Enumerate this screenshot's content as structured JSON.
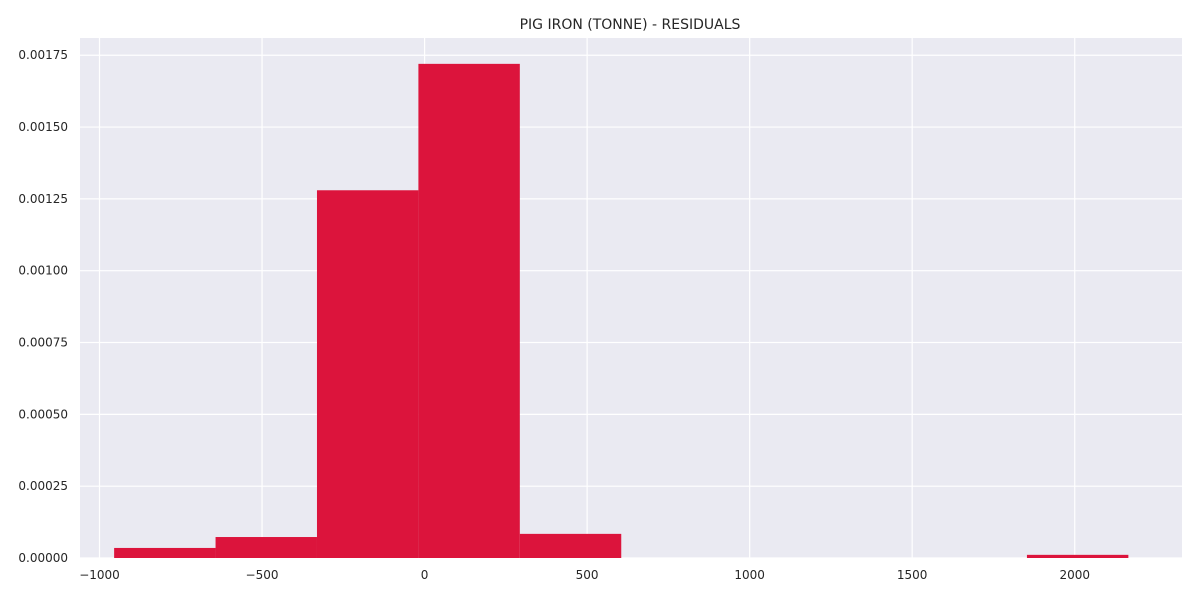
{
  "chart_data": {
    "type": "bar",
    "title": "PIG IRON (TONNE) - RESIDUALS",
    "xlabel": "",
    "ylabel": "",
    "xlim": [
      -1060,
      2330
    ],
    "ylim": [
      0,
      0.00181
    ],
    "grid": true,
    "background_color": "#eaeaf2",
    "bar_color": "#dc143c",
    "bins": [
      {
        "x0": -955,
        "x1": -643,
        "value": 3.5e-05
      },
      {
        "x0": -643,
        "x1": -331,
        "value": 7.3e-05
      },
      {
        "x0": -331,
        "x1": -19,
        "value": 0.00128
      },
      {
        "x0": -19,
        "x1": 293,
        "value": 0.00172
      },
      {
        "x0": 293,
        "x1": 605,
        "value": 8.4e-05
      },
      {
        "x0": 605,
        "x1": 917,
        "value": 0
      },
      {
        "x0": 917,
        "x1": 1229,
        "value": 0
      },
      {
        "x0": 1229,
        "x1": 1541,
        "value": 0
      },
      {
        "x0": 1541,
        "x1": 1853,
        "value": 0
      },
      {
        "x0": 1853,
        "x1": 2165,
        "value": 1.1e-05
      }
    ],
    "x_ticks": [
      {
        "value": -1000,
        "label": "−1000"
      },
      {
        "value": -500,
        "label": "−500"
      },
      {
        "value": 0,
        "label": "0"
      },
      {
        "value": 500,
        "label": "500"
      },
      {
        "value": 1000,
        "label": "1000"
      },
      {
        "value": 1500,
        "label": "1500"
      },
      {
        "value": 2000,
        "label": "2000"
      }
    ],
    "y_ticks": [
      {
        "value": 0,
        "label": "0.00000"
      },
      {
        "value": 0.00025,
        "label": "0.00025"
      },
      {
        "value": 0.0005,
        "label": "0.00050"
      },
      {
        "value": 0.00075,
        "label": "0.00075"
      },
      {
        "value": 0.001,
        "label": "0.00100"
      },
      {
        "value": 0.00125,
        "label": "0.00125"
      },
      {
        "value": 0.0015,
        "label": "0.00150"
      },
      {
        "value": 0.00175,
        "label": "0.00175"
      }
    ]
  }
}
